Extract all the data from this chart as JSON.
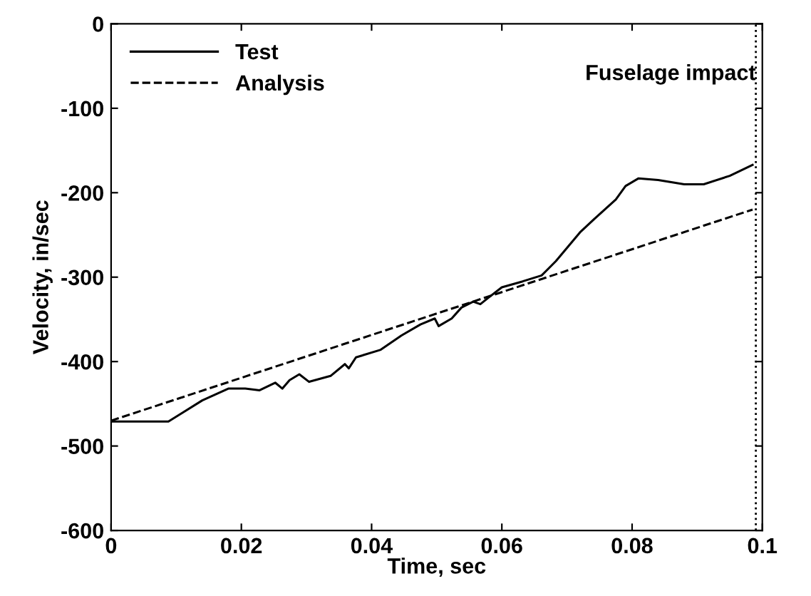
{
  "chart_data": {
    "type": "line",
    "xlabel": "Time, sec",
    "ylabel": "Velocity, in/sec",
    "xlim": [
      0,
      0.1
    ],
    "ylim": [
      -600,
      0
    ],
    "xticks": [
      0,
      0.02,
      0.04,
      0.06,
      0.08,
      0.1
    ],
    "yticks": [
      -600,
      -500,
      -400,
      -300,
      -200,
      -100,
      0
    ],
    "grid": false,
    "legend": "top left",
    "series": [
      {
        "name": "Test",
        "color": "#000000",
        "line_style": "solid",
        "x": [
          0,
          0.0088,
          0.014,
          0.018,
          0.0206,
          0.0228,
          0.0252,
          0.0263,
          0.0274,
          0.0289,
          0.0304,
          0.0337,
          0.0359,
          0.0365,
          0.0376,
          0.0414,
          0.0446,
          0.0475,
          0.0497,
          0.0503,
          0.0523,
          0.0538,
          0.0556,
          0.0567,
          0.058,
          0.06,
          0.0632,
          0.0661,
          0.0683,
          0.072,
          0.0742,
          0.0775,
          0.079,
          0.081,
          0.084,
          0.088,
          0.091,
          0.095,
          0.0985
        ],
        "values": [
          -471,
          -471,
          -446,
          -432,
          -432,
          -434,
          -425,
          -432,
          -422,
          -415,
          -424,
          -417,
          -403,
          -408,
          -395,
          -386,
          -369,
          -356,
          -349,
          -358,
          -349,
          -336,
          -329,
          -332,
          -324,
          -312,
          -305,
          -298,
          -281,
          -247,
          -231,
          -208,
          -192,
          -183,
          -185,
          -190,
          -190,
          -180,
          -167
        ]
      },
      {
        "name": "Analysis",
        "color": "#000000",
        "line_style": "dashed",
        "x": [
          0,
          0.0985
        ],
        "values": [
          -470,
          -220
        ]
      }
    ],
    "ref_lines": [
      {
        "axis": "x",
        "value": 0.099,
        "label": "Fuselage impact",
        "color": "#000000",
        "line_style": "dotted"
      }
    ]
  }
}
